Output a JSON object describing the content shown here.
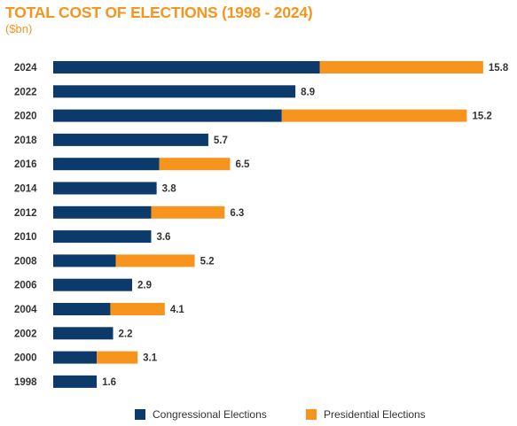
{
  "chart_data": {
    "type": "bar",
    "orientation": "horizontal",
    "stacked": true,
    "title": "TOTAL COST OF ELECTIONS (1998 - 2024)",
    "subtitle": "($bn)",
    "categories": [
      "2024",
      "2022",
      "2020",
      "2018",
      "2016",
      "2014",
      "2012",
      "2010",
      "2008",
      "2006",
      "2004",
      "2002",
      "2000",
      "1998"
    ],
    "series": [
      {
        "name": "Congressional Elections",
        "color": "#0C3A6B",
        "values": [
          9.8,
          8.9,
          8.4,
          5.7,
          3.9,
          3.8,
          3.6,
          3.6,
          2.3,
          2.9,
          2.1,
          2.2,
          1.6,
          1.6
        ]
      },
      {
        "name": "Presidential Elections",
        "color": "#F7941D",
        "values": [
          6.0,
          0,
          6.8,
          0,
          2.6,
          0,
          2.7,
          0,
          2.9,
          0,
          2.0,
          0,
          1.5,
          0
        ]
      }
    ],
    "total_labels": [
      "15.8",
      "8.9",
      "15.2",
      "5.7",
      "6.5",
      "3.8",
      "6.3",
      "3.6",
      "5.2",
      "2.9",
      "4.1",
      "2.2",
      "3.1",
      "1.6"
    ],
    "xlim": [
      0,
      16
    ],
    "grid": false,
    "legend_position": "bottom"
  }
}
